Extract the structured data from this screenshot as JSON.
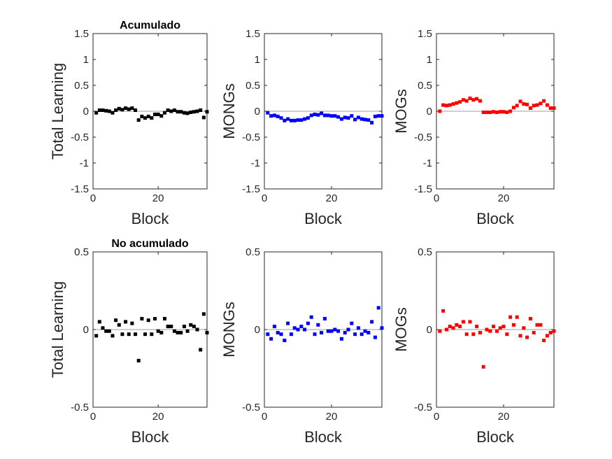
{
  "chart_data": [
    {
      "type": "scatter",
      "title": "Acumulado",
      "xlabel": "Block",
      "ylabel": "Total Learning",
      "xlim": [
        0,
        35
      ],
      "ylim": [
        -1.5,
        1.5
      ],
      "xticks": [
        "0",
        "20"
      ],
      "yticks": [
        "-1.5",
        "-1",
        "-0.5",
        "0",
        "0.5",
        "1",
        "1.5"
      ],
      "ytick_values": [
        -1.5,
        -1,
        -0.5,
        0,
        0.5,
        1,
        1.5
      ],
      "xtick_values": [
        0,
        20
      ],
      "reference_line_y": 0,
      "color": "#000000",
      "x": [
        1,
        2,
        3,
        4,
        5,
        6,
        7,
        8,
        9,
        10,
        11,
        12,
        13,
        14,
        15,
        16,
        17,
        18,
        19,
        20,
        21,
        22,
        23,
        24,
        25,
        26,
        27,
        28,
        29,
        30,
        31,
        32,
        33,
        34,
        35
      ],
      "y": [
        -0.03,
        0.02,
        0.02,
        0.01,
        0.0,
        -0.03,
        0.02,
        0.05,
        0.03,
        0.06,
        0.04,
        0.06,
        0.02,
        -0.17,
        -0.1,
        -0.13,
        -0.1,
        -0.13,
        -0.06,
        -0.06,
        -0.09,
        -0.03,
        0.02,
        0.0,
        0.02,
        -0.01,
        -0.01,
        -0.03,
        -0.04,
        -0.02,
        -0.01,
        0.0,
        0.02,
        -0.12,
        -0.01
      ]
    },
    {
      "type": "scatter",
      "title": "",
      "xlabel": "Block",
      "ylabel": "MONGs",
      "xlim": [
        0,
        35
      ],
      "ylim": [
        -1.5,
        1.5
      ],
      "xticks": [
        "0",
        "20"
      ],
      "yticks": [
        "-1.5",
        "-1",
        "-0.5",
        "0",
        "0.5",
        "1",
        "1.5"
      ],
      "ytick_values": [
        -1.5,
        -1,
        -0.5,
        0,
        0.5,
        1,
        1.5
      ],
      "xtick_values": [
        0,
        20
      ],
      "reference_line_y": 0,
      "color": "#0000ff",
      "x": [
        1,
        2,
        3,
        4,
        5,
        6,
        7,
        8,
        9,
        10,
        11,
        12,
        13,
        14,
        15,
        16,
        17,
        18,
        19,
        20,
        21,
        22,
        23,
        24,
        25,
        26,
        27,
        28,
        29,
        30,
        31,
        32,
        33,
        34,
        35
      ],
      "y": [
        -0.03,
        -0.09,
        -0.08,
        -0.1,
        -0.13,
        -0.18,
        -0.15,
        -0.18,
        -0.18,
        -0.17,
        -0.17,
        -0.15,
        -0.13,
        -0.08,
        -0.06,
        -0.07,
        -0.04,
        -0.08,
        -0.08,
        -0.09,
        -0.09,
        -0.11,
        -0.15,
        -0.12,
        -0.13,
        -0.09,
        -0.16,
        -0.12,
        -0.15,
        -0.16,
        -0.17,
        -0.22,
        -0.1,
        -0.09,
        -0.09
      ]
    },
    {
      "type": "scatter",
      "title": "",
      "xlabel": "Block",
      "ylabel": "MOGs",
      "xlim": [
        0,
        35
      ],
      "ylim": [
        -1.5,
        1.5
      ],
      "xticks": [
        "0",
        "20"
      ],
      "yticks": [
        "-1.5",
        "-1",
        "-0.5",
        "0",
        "0.5",
        "1",
        "1.5"
      ],
      "ytick_values": [
        -1.5,
        -1,
        -0.5,
        0,
        0.5,
        1,
        1.5
      ],
      "xtick_values": [
        0,
        20
      ],
      "reference_line_y": 0,
      "color": "#ff0000",
      "x": [
        1,
        2,
        3,
        4,
        5,
        6,
        7,
        8,
        9,
        10,
        11,
        12,
        13,
        14,
        15,
        16,
        17,
        18,
        19,
        20,
        21,
        22,
        23,
        24,
        25,
        26,
        27,
        28,
        29,
        30,
        31,
        32,
        33,
        34,
        35
      ],
      "y": [
        0.0,
        0.12,
        0.11,
        0.12,
        0.14,
        0.16,
        0.18,
        0.22,
        0.2,
        0.25,
        0.22,
        0.24,
        0.2,
        -0.02,
        -0.02,
        -0.02,
        -0.01,
        -0.02,
        -0.01,
        -0.01,
        -0.02,
        0.0,
        0.07,
        0.11,
        0.19,
        0.14,
        0.13,
        0.06,
        0.11,
        0.12,
        0.15,
        0.2,
        0.12,
        0.06,
        0.06
      ]
    },
    {
      "type": "scatter",
      "title": "No acumulado",
      "xlabel": "Block",
      "ylabel": "Total Learning",
      "xlim": [
        0,
        35
      ],
      "ylim": [
        -0.5,
        0.5
      ],
      "xticks": [
        "0",
        "20"
      ],
      "yticks": [
        "-0.5",
        "0",
        "0.5"
      ],
      "ytick_values": [
        -0.5,
        0,
        0.5
      ],
      "xtick_values": [
        0,
        20
      ],
      "reference_line_y": 0,
      "color": "#000000",
      "x": [
        1,
        2,
        3,
        4,
        5,
        6,
        7,
        8,
        9,
        10,
        11,
        12,
        13,
        14,
        15,
        16,
        17,
        18,
        19,
        20,
        21,
        22,
        23,
        24,
        25,
        26,
        27,
        28,
        29,
        30,
        31,
        32,
        33,
        34,
        35
      ],
      "y": [
        -0.04,
        0.05,
        0.01,
        -0.01,
        -0.01,
        -0.04,
        0.06,
        0.03,
        -0.03,
        0.05,
        -0.03,
        0.04,
        -0.03,
        -0.2,
        0.07,
        -0.03,
        0.06,
        -0.03,
        0.07,
        -0.01,
        -0.02,
        0.07,
        0.02,
        0.02,
        -0.01,
        -0.02,
        -0.02,
        0.02,
        -0.01,
        0.03,
        0.02,
        0.0,
        -0.13,
        0.1,
        -0.02
      ]
    },
    {
      "type": "scatter",
      "title": "",
      "xlabel": "Block",
      "ylabel": "MONGs",
      "xlim": [
        0,
        35
      ],
      "ylim": [
        -0.5,
        0.5
      ],
      "xticks": [
        "0",
        "20"
      ],
      "yticks": [
        "-0.5",
        "0",
        "0.5"
      ],
      "ytick_values": [
        -0.5,
        0,
        0.5
      ],
      "xtick_values": [
        0,
        20
      ],
      "reference_line_y": 0,
      "color": "#0000ff",
      "x": [
        1,
        2,
        3,
        4,
        5,
        6,
        7,
        8,
        9,
        10,
        11,
        12,
        13,
        14,
        15,
        16,
        17,
        18,
        19,
        20,
        21,
        22,
        23,
        24,
        25,
        26,
        27,
        28,
        29,
        30,
        31,
        32,
        33,
        34,
        35
      ],
      "y": [
        -0.03,
        -0.06,
        0.02,
        -0.02,
        -0.03,
        -0.07,
        0.04,
        -0.03,
        0.01,
        0.0,
        0.02,
        0.0,
        0.04,
        0.08,
        -0.03,
        0.03,
        -0.02,
        0.07,
        -0.01,
        -0.01,
        0.0,
        -0.01,
        -0.06,
        -0.02,
        0.0,
        0.04,
        -0.03,
        0.01,
        -0.03,
        -0.01,
        -0.02,
        0.05,
        -0.05,
        0.14,
        0.01
      ]
    },
    {
      "type": "scatter",
      "title": "",
      "xlabel": "Block",
      "ylabel": "MOGs",
      "xlim": [
        0,
        35
      ],
      "ylim": [
        -0.5,
        0.5
      ],
      "xticks": [
        "0",
        "20"
      ],
      "yticks": [
        "-0.5",
        "0",
        "0.5"
      ],
      "ytick_values": [
        -0.5,
        0,
        0.5
      ],
      "xtick_values": [
        0,
        20
      ],
      "reference_line_y": 0,
      "color": "#ff0000",
      "x": [
        1,
        2,
        3,
        4,
        5,
        6,
        7,
        8,
        9,
        10,
        11,
        12,
        13,
        14,
        15,
        16,
        17,
        18,
        19,
        20,
        21,
        22,
        23,
        24,
        25,
        26,
        27,
        28,
        29,
        30,
        31,
        32,
        33,
        34,
        35
      ],
      "y": [
        -0.01,
        0.12,
        0.0,
        0.02,
        0.01,
        0.03,
        0.02,
        0.05,
        -0.03,
        0.05,
        -0.03,
        0.02,
        -0.02,
        -0.24,
        0.0,
        -0.01,
        0.02,
        -0.01,
        0.01,
        0.02,
        -0.03,
        0.08,
        0.03,
        0.08,
        -0.04,
        0.01,
        -0.05,
        0.07,
        -0.02,
        0.03,
        0.03,
        -0.07,
        -0.04,
        -0.02,
        -0.01
      ]
    }
  ]
}
